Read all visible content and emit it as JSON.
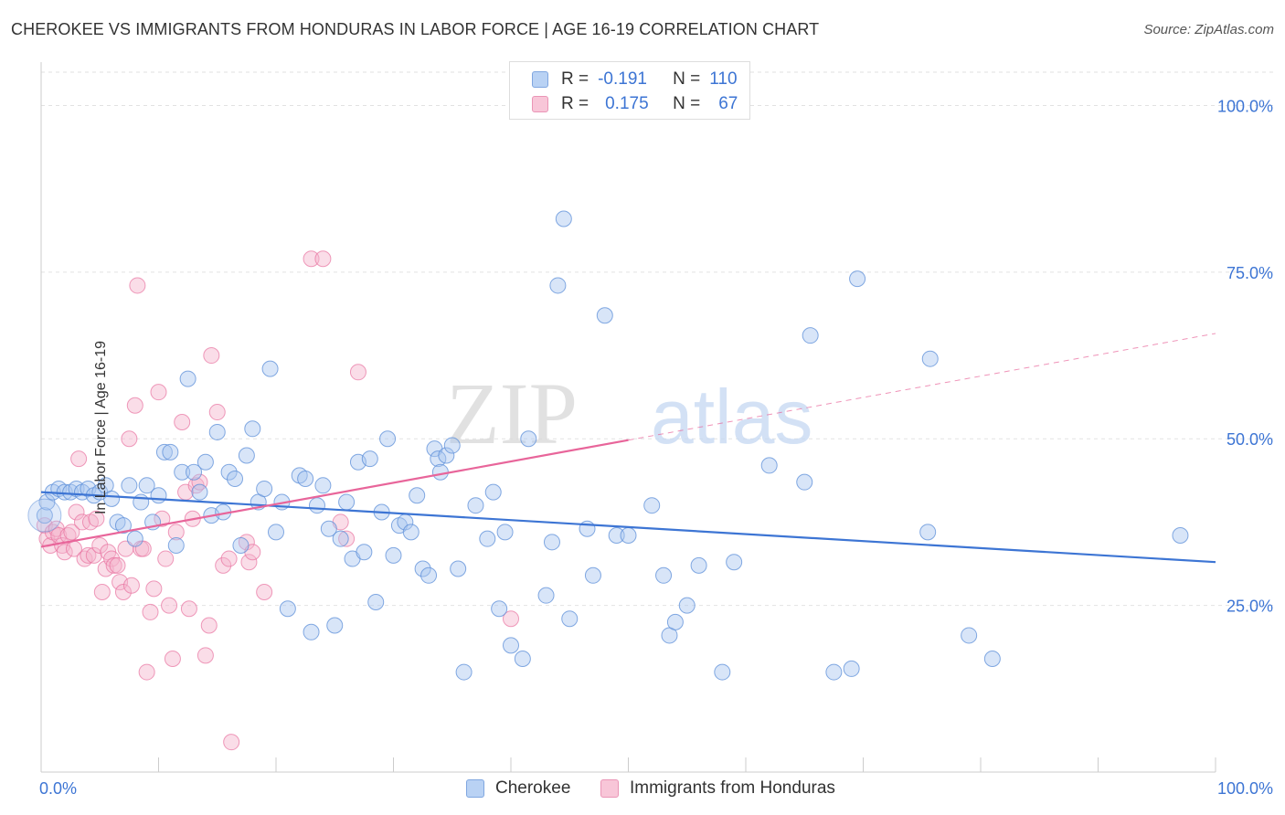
{
  "title": "CHEROKEE VS IMMIGRANTS FROM HONDURAS IN LABOR FORCE | AGE 16-19 CORRELATION CHART",
  "source": "Source: ZipAtlas.com",
  "watermark": {
    "zip": "ZIP",
    "atlas": "atlas"
  },
  "legend": {
    "r_label": "R =",
    "n_label": "N =",
    "series1": {
      "r": "-0.191",
      "n": "110"
    },
    "series2": {
      "r": "0.175",
      "n": "67"
    }
  },
  "bottom_legend": {
    "series1": "Cherokee",
    "series2": "Immigrants from Honduras"
  },
  "colors": {
    "blue": "#3d75d4",
    "blue_fill": "#a8c6f0",
    "pink": "#e8659a",
    "pink_fill": "#f5b3cb",
    "axis_text": "#3d75d4"
  },
  "chart_data": {
    "type": "scatter",
    "title": "CHEROKEE VS IMMIGRANTS FROM HONDURAS IN LABOR FORCE | AGE 16-19 CORRELATION CHART",
    "xlabel": "",
    "ylabel": "In Labor Force | Age 16-19",
    "xlim": [
      0,
      100
    ],
    "ylim": [
      0,
      105
    ],
    "x_tick_labels": [
      "0.0%",
      "100.0%"
    ],
    "y_ticks": [
      25,
      50,
      75,
      100
    ],
    "y_tick_labels": [
      "25.0%",
      "50.0%",
      "75.0%",
      "100.0%"
    ],
    "grid": true,
    "series": [
      {
        "name": "Cherokee",
        "r": -0.191,
        "n": 110,
        "trend": {
          "x0": 0,
          "y0": 42.0,
          "x1": 100,
          "y1": 31.5
        },
        "points": [
          [
            0.3,
            38.5
          ],
          [
            0.5,
            40.5
          ],
          [
            1.0,
            42.0
          ],
          [
            1.5,
            42.5
          ],
          [
            2.0,
            42.0
          ],
          [
            2.5,
            42.0
          ],
          [
            3.0,
            42.5
          ],
          [
            3.5,
            42.0
          ],
          [
            4.0,
            42.5
          ],
          [
            4.5,
            41.5
          ],
          [
            5.0,
            42.0
          ],
          [
            5.5,
            43.0
          ],
          [
            6.0,
            41.0
          ],
          [
            6.5,
            37.5
          ],
          [
            7.0,
            37.0
          ],
          [
            7.5,
            43.0
          ],
          [
            8.0,
            35.0
          ],
          [
            8.5,
            40.5
          ],
          [
            9.0,
            43.0
          ],
          [
            9.5,
            37.5
          ],
          [
            10.0,
            41.5
          ],
          [
            10.5,
            48.0
          ],
          [
            11.0,
            48.0
          ],
          [
            11.5,
            34.0
          ],
          [
            12.0,
            45.0
          ],
          [
            12.5,
            59.0
          ],
          [
            13.0,
            45.0
          ],
          [
            13.5,
            42.0
          ],
          [
            14.0,
            46.5
          ],
          [
            14.5,
            38.5
          ],
          [
            15.0,
            51.0
          ],
          [
            15.5,
            39.0
          ],
          [
            16.0,
            45.0
          ],
          [
            16.5,
            44.0
          ],
          [
            17.0,
            34.0
          ],
          [
            17.5,
            47.5
          ],
          [
            18.0,
            51.5
          ],
          [
            18.5,
            40.5
          ],
          [
            19.0,
            42.5
          ],
          [
            19.5,
            60.5
          ],
          [
            20.0,
            36.0
          ],
          [
            20.5,
            40.5
          ],
          [
            21.0,
            24.5
          ],
          [
            22.0,
            44.5
          ],
          [
            22.5,
            44.0
          ],
          [
            23.0,
            21.0
          ],
          [
            23.5,
            40.0
          ],
          [
            24.0,
            43.0
          ],
          [
            24.5,
            36.5
          ],
          [
            25.0,
            22.0
          ],
          [
            25.5,
            35.0
          ],
          [
            26.0,
            40.5
          ],
          [
            26.5,
            32.0
          ],
          [
            27.0,
            46.5
          ],
          [
            27.5,
            33.0
          ],
          [
            28.0,
            47.0
          ],
          [
            28.5,
            25.5
          ],
          [
            29.0,
            39.0
          ],
          [
            29.5,
            50.0
          ],
          [
            30.0,
            32.5
          ],
          [
            30.5,
            37.0
          ],
          [
            31.0,
            37.5
          ],
          [
            31.5,
            36.0
          ],
          [
            32.0,
            41.5
          ],
          [
            32.5,
            30.5
          ],
          [
            33.0,
            29.5
          ],
          [
            33.5,
            48.5
          ],
          [
            33.8,
            47.0
          ],
          [
            34.0,
            45.0
          ],
          [
            34.5,
            47.5
          ],
          [
            35.0,
            49.0
          ],
          [
            35.5,
            30.5
          ],
          [
            36.0,
            15.0
          ],
          [
            37.0,
            40.0
          ],
          [
            38.0,
            35.0
          ],
          [
            38.5,
            42.0
          ],
          [
            39.0,
            24.5
          ],
          [
            39.5,
            36.0
          ],
          [
            40.0,
            19.0
          ],
          [
            41.0,
            17.0
          ],
          [
            41.5,
            50.0
          ],
          [
            43.0,
            26.5
          ],
          [
            43.5,
            34.5
          ],
          [
            44.0,
            73.0
          ],
          [
            44.5,
            83.0
          ],
          [
            45.0,
            23.0
          ],
          [
            46.5,
            36.5
          ],
          [
            47.0,
            29.5
          ],
          [
            48.0,
            68.5
          ],
          [
            49.0,
            35.5
          ],
          [
            50.0,
            35.5
          ],
          [
            52.0,
            40.0
          ],
          [
            53.0,
            29.5
          ],
          [
            53.5,
            20.5
          ],
          [
            54.0,
            22.5
          ],
          [
            55.0,
            25.0
          ],
          [
            56.0,
            31.0
          ],
          [
            58.0,
            15.0
          ],
          [
            59.0,
            31.5
          ],
          [
            62.0,
            46.0
          ],
          [
            65.0,
            43.5
          ],
          [
            65.5,
            65.5
          ],
          [
            67.5,
            15.0
          ],
          [
            69.0,
            15.5
          ],
          [
            69.5,
            74.0
          ],
          [
            75.5,
            36.0
          ],
          [
            75.7,
            62.0
          ],
          [
            79.0,
            20.5
          ],
          [
            81.0,
            17.0
          ],
          [
            97.0,
            35.5
          ]
        ]
      },
      {
        "name": "Immigrants from Honduras",
        "r": 0.175,
        "n": 67,
        "trend": {
          "x0": 0,
          "y0": 33.8,
          "x1": 50,
          "y1": 49.8
        },
        "trend_dashed": {
          "x0": 50,
          "y0": 49.8,
          "x1": 100,
          "y1": 65.8
        },
        "points": [
          [
            0.3,
            37.0
          ],
          [
            0.5,
            35.0
          ],
          [
            0.8,
            34.0
          ],
          [
            1.0,
            36.0
          ],
          [
            1.3,
            36.5
          ],
          [
            1.5,
            35.5
          ],
          [
            1.8,
            34.0
          ],
          [
            2.0,
            33.0
          ],
          [
            2.3,
            35.5
          ],
          [
            2.6,
            36.0
          ],
          [
            2.8,
            33.5
          ],
          [
            3.0,
            39.0
          ],
          [
            3.2,
            47.0
          ],
          [
            3.5,
            37.5
          ],
          [
            3.7,
            32.0
          ],
          [
            4.0,
            32.5
          ],
          [
            4.2,
            37.5
          ],
          [
            4.5,
            32.5
          ],
          [
            4.7,
            38.0
          ],
          [
            5.0,
            34.0
          ],
          [
            5.2,
            27.0
          ],
          [
            5.5,
            30.5
          ],
          [
            5.7,
            33.0
          ],
          [
            6.0,
            32.0
          ],
          [
            6.2,
            31.0
          ],
          [
            6.5,
            31.0
          ],
          [
            6.7,
            28.5
          ],
          [
            7.0,
            27.0
          ],
          [
            7.2,
            33.5
          ],
          [
            7.5,
            50.0
          ],
          [
            7.7,
            28.0
          ],
          [
            8.0,
            55.0
          ],
          [
            8.2,
            73.0
          ],
          [
            8.5,
            33.5
          ],
          [
            8.7,
            33.5
          ],
          [
            9.0,
            15.0
          ],
          [
            9.3,
            24.0
          ],
          [
            9.6,
            27.5
          ],
          [
            10.0,
            57.0
          ],
          [
            10.3,
            38.0
          ],
          [
            10.6,
            32.0
          ],
          [
            10.9,
            25.0
          ],
          [
            11.2,
            17.0
          ],
          [
            11.5,
            36.0
          ],
          [
            12.0,
            52.5
          ],
          [
            12.3,
            42.0
          ],
          [
            12.6,
            24.5
          ],
          [
            12.9,
            38.0
          ],
          [
            13.2,
            43.0
          ],
          [
            13.5,
            43.5
          ],
          [
            14.0,
            17.5
          ],
          [
            14.3,
            22.0
          ],
          [
            14.5,
            62.5
          ],
          [
            15.0,
            54.0
          ],
          [
            15.5,
            31.0
          ],
          [
            16.0,
            32.0
          ],
          [
            16.2,
            4.5
          ],
          [
            17.5,
            34.5
          ],
          [
            17.7,
            31.5
          ],
          [
            18.0,
            33.0
          ],
          [
            19.0,
            27.0
          ],
          [
            23.0,
            77.0
          ],
          [
            24.0,
            77.0
          ],
          [
            25.5,
            37.5
          ],
          [
            26.0,
            35.0
          ],
          [
            27.0,
            60.0
          ],
          [
            40.0,
            23.0
          ]
        ]
      }
    ]
  }
}
